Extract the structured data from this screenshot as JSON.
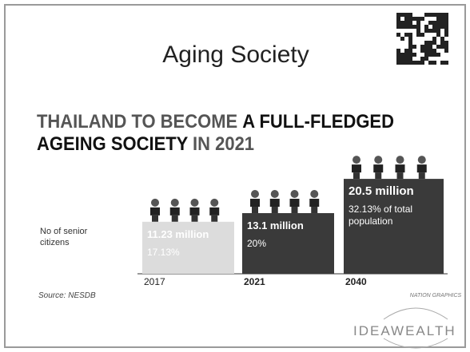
{
  "slide_title": "Aging Society",
  "headline": [
    [
      {
        "text": "THAILAND TO BECOME ",
        "color": "#555555"
      },
      {
        "text": "A FULL-FLEDGED",
        "color": "#111111"
      }
    ],
    [
      {
        "text": "AGEING SOCIETY ",
        "color": "#111111"
      },
      {
        "text": "IN 2021",
        "color": "#555555"
      }
    ]
  ],
  "row_label": [
    "No of senior",
    "citizens"
  ],
  "source": "Source: NESDB",
  "credit": "NATION GRAPHICS",
  "logo": "IDEAWEALTH",
  "chart_data": {
    "type": "bar",
    "categories": [
      "2017",
      "2021",
      "2040"
    ],
    "values": [
      11.23,
      13.1,
      20.5
    ],
    "value_labels": [
      "11.23 million",
      "13.1 million",
      "20.5 million"
    ],
    "shares": [
      [
        "17.13%"
      ],
      [
        "20%"
      ],
      [
        "32.13% of total",
        "population"
      ]
    ],
    "colors": [
      "#dcdcdc",
      "#3a3a3a",
      "#3a3a3a"
    ]
  }
}
